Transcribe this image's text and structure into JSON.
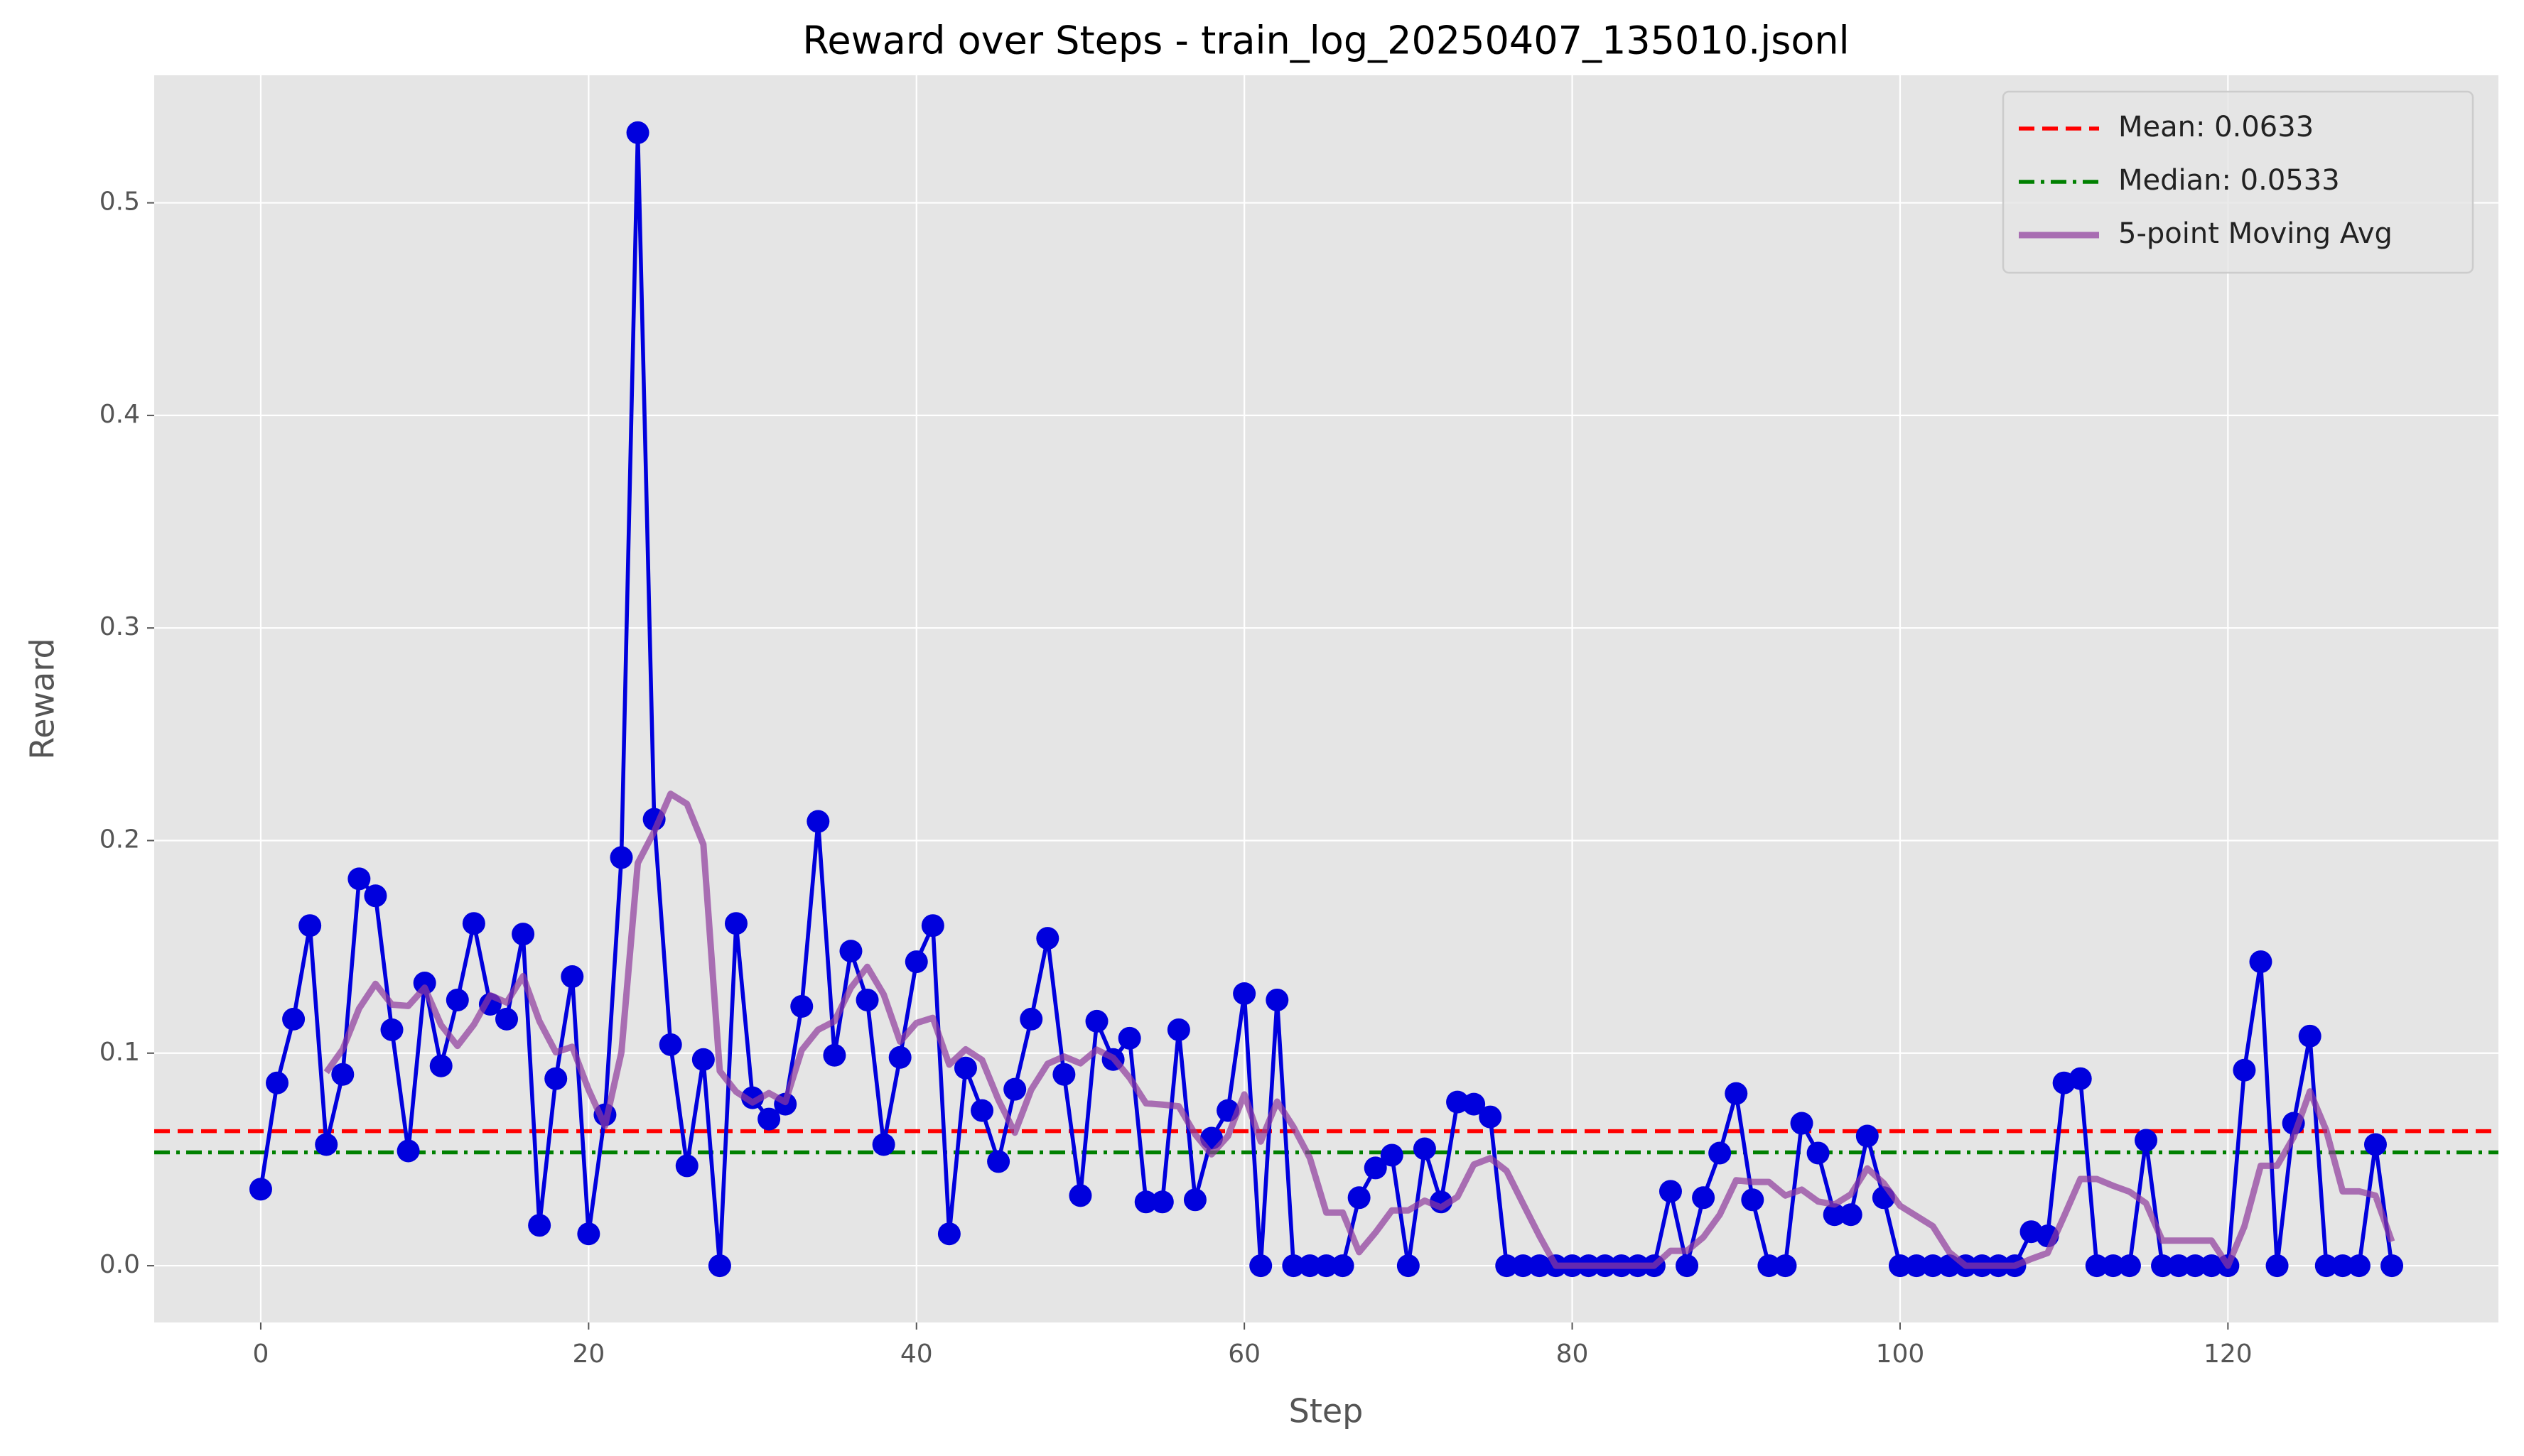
{
  "chart_data": {
    "type": "line",
    "title": "Reward over Steps - train_log_20250407_135010.jsonl",
    "xlabel": "Step",
    "ylabel": "Reward",
    "x": [
      0,
      1,
      2,
      3,
      4,
      5,
      6,
      7,
      8,
      9,
      10,
      11,
      12,
      13,
      14,
      15,
      16,
      17,
      18,
      19,
      20,
      21,
      22,
      23,
      24,
      25,
      26,
      27,
      28,
      29,
      30,
      31,
      32,
      33,
      34,
      35,
      36,
      37,
      38,
      39,
      40,
      41,
      42,
      43,
      44,
      45,
      46,
      47,
      48,
      49,
      50,
      51,
      52,
      53,
      54,
      55,
      56,
      57,
      58,
      59,
      60,
      61,
      62,
      63,
      64,
      65,
      66,
      67,
      68,
      69,
      70,
      71,
      72,
      73,
      74,
      75,
      76,
      77,
      78,
      79,
      80,
      81,
      82,
      83,
      84,
      85,
      86,
      87,
      88,
      89,
      90,
      91,
      92,
      93,
      94,
      95,
      96,
      97,
      98,
      99,
      100,
      101,
      102,
      103,
      104,
      105,
      106,
      107,
      108,
      109,
      110,
      111,
      112,
      113,
      114,
      115,
      116,
      117,
      118,
      119,
      120,
      121,
      122,
      123,
      124,
      125,
      126,
      127,
      128,
      129,
      130
    ],
    "series": [
      {
        "color": "#0000dd",
        "markers": true,
        "values": [
          0.036,
          0.086,
          0.116,
          0.16,
          0.057,
          0.09,
          0.182,
          0.174,
          0.111,
          0.054,
          0.133,
          0.094,
          0.125,
          0.161,
          0.123,
          0.116,
          0.156,
          0.019,
          0.088,
          0.136,
          0.015,
          0.071,
          0.192,
          0.533,
          0.21,
          0.104,
          0.047,
          0.097,
          0,
          0.161,
          0.079,
          0.069,
          0.076,
          0.122,
          0.209,
          0.099,
          0.148,
          0.125,
          0.057,
          0.098,
          0.143,
          0.16,
          0.015,
          0.093,
          0.073,
          0.049,
          0.083,
          0.116,
          0.154,
          0.09,
          0.033,
          0.115,
          0.097,
          0.107,
          0.03,
          0.03,
          0.111,
          0.031,
          0.06,
          0.073,
          0.128,
          0,
          0.125,
          0,
          0,
          0,
          0,
          0.032,
          0.046,
          0.052,
          0,
          0.055,
          0.03,
          0.077,
          0.076,
          0.07,
          0,
          0,
          0,
          0,
          0,
          0,
          0,
          0,
          0,
          0,
          0.035,
          0,
          0.032,
          0.053,
          0.081,
          0.031,
          0,
          0,
          0.067,
          0.053,
          0.024,
          0.024,
          0.061,
          0.032,
          0,
          0,
          0,
          0,
          0,
          0,
          0,
          0,
          0.016,
          0.014,
          0.086,
          0.088,
          0,
          0,
          0,
          0.059,
          0,
          0,
          0,
          0,
          0,
          0.092,
          0.143,
          0,
          0.067,
          0.108,
          0,
          0,
          0,
          0.057,
          0
        ]
      },
      {
        "name": "5-point Moving Avg",
        "color": "#8e3a9c",
        "markers": false,
        "values": [
          null,
          null,
          null,
          null,
          0.091,
          0.1018,
          0.121,
          0.1326,
          0.1228,
          0.1222,
          0.1308,
          0.1132,
          0.1034,
          0.1134,
          0.1272,
          0.1238,
          0.1362,
          0.115,
          0.1004,
          0.103,
          0.0828,
          0.0658,
          0.1004,
          0.1894,
          0.2042,
          0.222,
          0.2172,
          0.1982,
          0.0916,
          0.0818,
          0.0768,
          0.0812,
          0.077,
          0.1014,
          0.111,
          0.115,
          0.1308,
          0.1406,
          0.1276,
          0.1054,
          0.1142,
          0.1166,
          0.0946,
          0.1018,
          0.0968,
          0.078,
          0.0626,
          0.0828,
          0.095,
          0.0984,
          0.0952,
          0.1016,
          0.0978,
          0.0884,
          0.0764,
          0.0758,
          0.075,
          0.0618,
          0.0524,
          0.061,
          0.0806,
          0.0584,
          0.0772,
          0.0652,
          0.0506,
          0.025,
          0.025,
          0.0064,
          0.0156,
          0.026,
          0.026,
          0.0306,
          0.0274,
          0.0324,
          0.0476,
          0.0506,
          0.0446,
          0.0292,
          0.014,
          0,
          0,
          0,
          0,
          0,
          0,
          0,
          0.007,
          0.007,
          0.0134,
          0.024,
          0.0402,
          0.0394,
          0.0394,
          0.033,
          0.0358,
          0.0302,
          0.0288,
          0.0336,
          0.0458,
          0.0388,
          0.0282,
          0.0234,
          0.0186,
          0.0064,
          0,
          0,
          0,
          0,
          0.0032,
          0.006,
          0.0232,
          0.0408,
          0.0408,
          0.0376,
          0.0348,
          0.0294,
          0.0118,
          0.0118,
          0.0118,
          0.0118,
          0,
          0.0184,
          0.047,
          0.047,
          0.0604,
          0.082,
          0.0636,
          0.035,
          0.035,
          0.033,
          0.0114
        ]
      }
    ],
    "hlines": [
      {
        "name": "Mean: 0.0633",
        "value": 0.0633,
        "color": "#ff0000",
        "style": "dashed"
      },
      {
        "name": "Median: 0.0533",
        "value": 0.0533,
        "color": "#008000",
        "style": "dashdot"
      }
    ],
    "xlim": [
      -6.5,
      136.5
    ],
    "ylim": [
      -0.0267,
      0.56
    ],
    "xticks": [
      0,
      20,
      40,
      60,
      80,
      100,
      120
    ],
    "yticks": [
      {
        "value": 0,
        "label": "0.0"
      },
      0.1,
      0.2,
      0.3,
      0.4,
      0.5
    ],
    "grid": true,
    "legend": "upper right"
  }
}
